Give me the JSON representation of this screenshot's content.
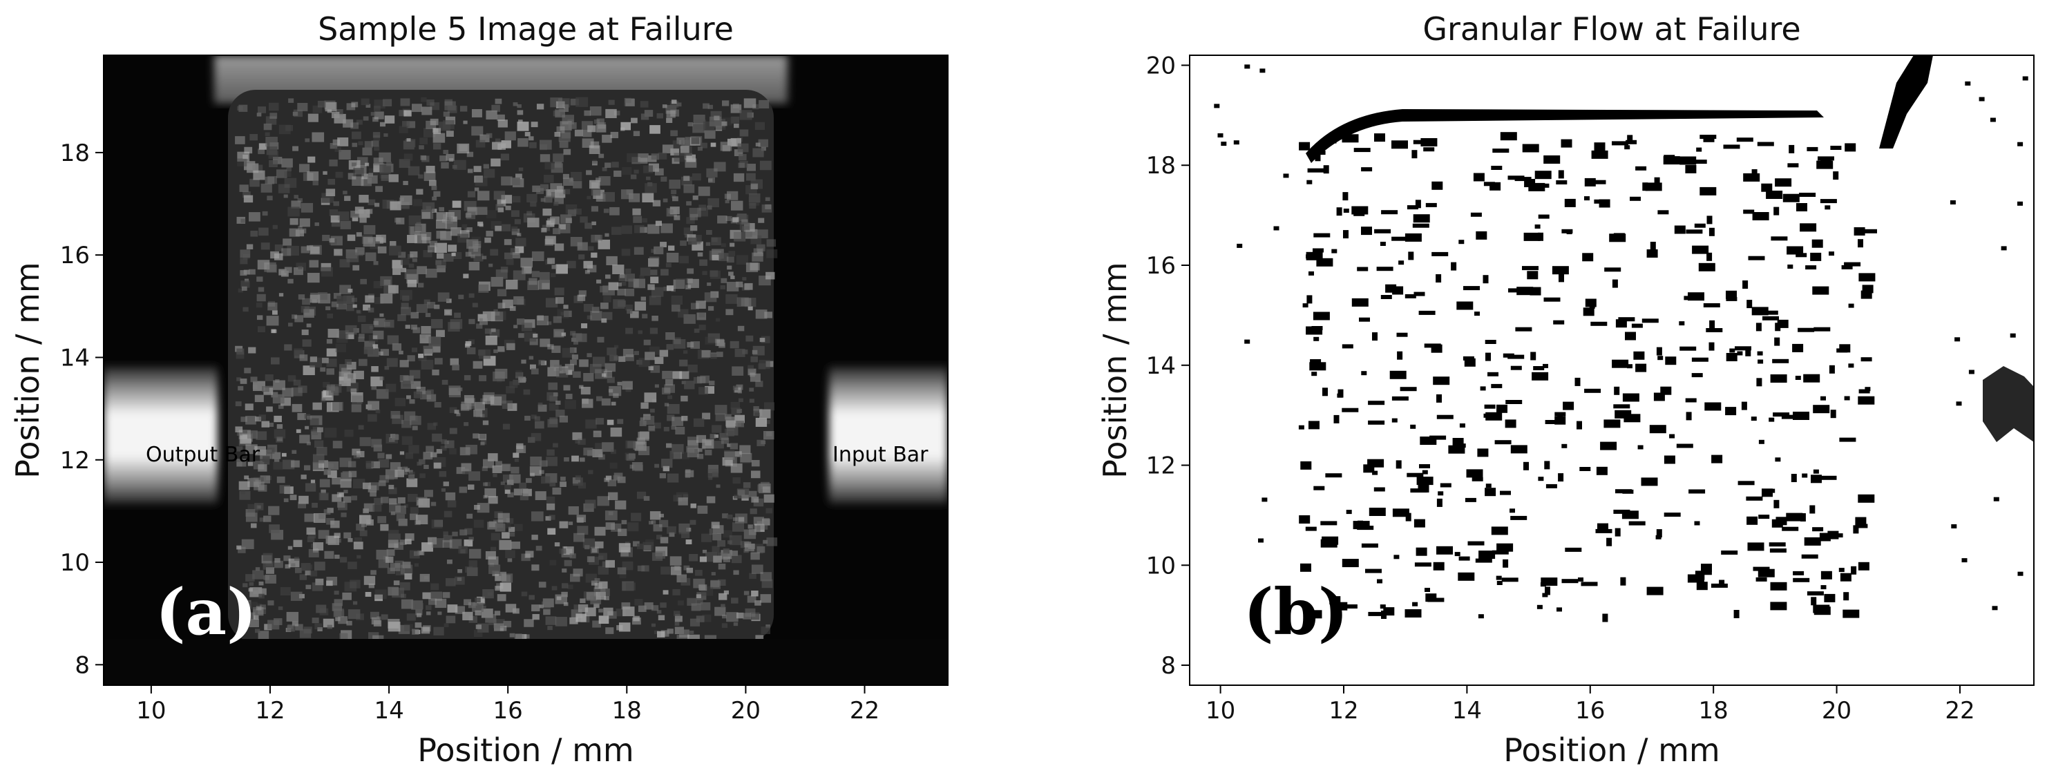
{
  "chart_data": [
    {
      "type": "heatmap",
      "title": "Sample 5 Image at Failure",
      "xlabel": "Position / mm",
      "ylabel": "Position / mm",
      "xlim": [
        9.2,
        23.4
      ],
      "ylim": [
        7.6,
        19.9
      ],
      "xticks": [
        10,
        12,
        14,
        16,
        18,
        20,
        22
      ],
      "yticks": [
        8,
        10,
        12,
        14,
        16,
        18
      ],
      "panel_label": "(a)",
      "annotations": [
        {
          "text": "Output Bar",
          "x": 10.95,
          "y": 12.0
        },
        {
          "text": "Input Bar",
          "x": 22.2,
          "y": 12.0
        }
      ]
    },
    {
      "type": "scatter",
      "title": "Granular Flow at Failure",
      "xlabel": "Position / mm",
      "ylabel": "Position / mm",
      "xlim": [
        9.5,
        23.2
      ],
      "ylim": [
        7.6,
        20.2
      ],
      "xticks": [
        10,
        12,
        14,
        16,
        18,
        20,
        22
      ],
      "yticks": [
        8,
        10,
        12,
        14,
        16,
        18,
        20
      ],
      "panel_label": "(b)"
    }
  ]
}
